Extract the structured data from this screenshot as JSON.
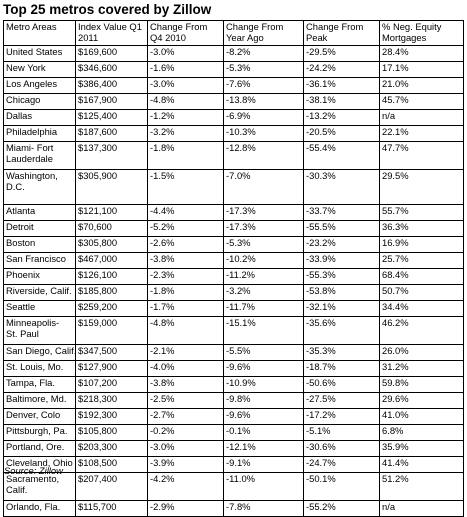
{
  "title": "Top 25 metros covered by Zillow",
  "columns": [
    "Metro Areas",
    "Index Value Q1 2011",
    "Change From Q4 2010",
    "Change From Year Ago",
    "Change From Peak",
    "% Neg. Equity Mortgages"
  ],
  "rows": [
    {
      "metro": "United States",
      "index": "$169,600",
      "q4": "-3.0%",
      "year": "-8.2%",
      "peak": "-29.5%",
      "neg": "28.4%"
    },
    {
      "metro": "New York",
      "index": "$346,600",
      "q4": "-1.6%",
      "year": "-5.3%",
      "peak": "-24.2%",
      "neg": "17.1%"
    },
    {
      "metro": "Los Angeles",
      "index": "$386,400",
      "q4": "-3.0%",
      "year": "-7.6%",
      "peak": "-36.1%",
      "neg": "21.0%"
    },
    {
      "metro": "Chicago",
      "index": "$167,900",
      "q4": "-4.8%",
      "year": "-13.8%",
      "peak": "-38.1%",
      "neg": "45.7%"
    },
    {
      "metro": "Dallas",
      "index": "$125,400",
      "q4": "-1.2%",
      "year": "-6.9%",
      "peak": "-13.2%",
      "neg": "n/a"
    },
    {
      "metro": "Philadelphia",
      "index": "$187,600",
      "q4": "-3.2%",
      "year": "-10.3%",
      "peak": "-20.5%",
      "neg": "22.1%"
    },
    {
      "metro": "Miami- Fort Lauderdale",
      "index": "$137,300",
      "q4": "-1.8%",
      "year": "-12.8%",
      "peak": "-55.4%",
      "neg": "47.7%"
    },
    {
      "metro": "Washington, D.C.",
      "index": "$305,900",
      "q4": "-1.5%",
      "year": "-7.0%",
      "peak": "-30.3%",
      "neg": "29.5%"
    },
    {
      "metro": "Atlanta",
      "index": "$121,100",
      "q4": "-4.4%",
      "year": "-17.3%",
      "peak": "-33.7%",
      "neg": "55.7%"
    },
    {
      "metro": "Detroit",
      "index": "$70,600",
      "q4": "-5.2%",
      "year": "-17.3%",
      "peak": "-55.5%",
      "neg": "36.3%"
    },
    {
      "metro": "Boston",
      "index": "$305,800",
      "q4": "-2.6%",
      "year": "-5.3%",
      "peak": "-23.2%",
      "neg": "16.9%"
    },
    {
      "metro": "San Francisco",
      "index": "$467,000",
      "q4": "-3.8%",
      "year": "-10.2%",
      "peak": "-33.9%",
      "neg": "25.7%"
    },
    {
      "metro": "Phoenix",
      "index": "$126,100",
      "q4": "-2.3%",
      "year": "-11.2%",
      "peak": "-55.3%",
      "neg": "68.4%"
    },
    {
      "metro": "Riverside, Calif.",
      "index": "$185,800",
      "q4": "-1.8%",
      "year": "-3.2%",
      "peak": "-53.8%",
      "neg": "50.7%"
    },
    {
      "metro": "Seattle",
      "index": "$259,200",
      "q4": "-1.7%",
      "year": "-11.7%",
      "peak": "-32.1%",
      "neg": "34.4%"
    },
    {
      "metro": "Minneapolis- St. Paul",
      "index": "$159,000",
      "q4": "-4.8%",
      "year": "-15.1%",
      "peak": "-35.6%",
      "neg": "46.2%"
    },
    {
      "metro": "San Diego, Calif.",
      "index": "$347,500",
      "q4": "-2.1%",
      "year": "-5.5%",
      "peak": "-35.3%",
      "neg": "26.0%"
    },
    {
      "metro": "St. Louis, Mo.",
      "index": "$127,900",
      "q4": "-4.0%",
      "year": "-9.6%",
      "peak": "-18.7%",
      "neg": "31.2%"
    },
    {
      "metro": "Tampa, Fla.",
      "index": "$107,200",
      "q4": "-3.8%",
      "year": "-10.9%",
      "peak": "-50.6%",
      "neg": "59.8%"
    },
    {
      "metro": "Baltimore, Md.",
      "index": "$218,300",
      "q4": "-2.5%",
      "year": "-9.8%",
      "peak": "-27.5%",
      "neg": "29.6%"
    },
    {
      "metro": "Denver, Colo",
      "index": "$192,300",
      "q4": "-2.7%",
      "year": "-9.6%",
      "peak": "-17.2%",
      "neg": "41.0%"
    },
    {
      "metro": "Pittsburgh, Pa.",
      "index": "$105,800",
      "q4": "-0.2%",
      "year": "-0.1%",
      "peak": "-5.1%",
      "neg": "6.8%"
    },
    {
      "metro": "Portland, Ore.",
      "index": "$203,300",
      "q4": "-3.0%",
      "year": "-12.1%",
      "peak": "-30.6%",
      "neg": "35.9%"
    },
    {
      "metro": "Cleveland, Ohio",
      "index": "$108,500",
      "q4": "-3.9%",
      "year": "-9.1%",
      "peak": "-24.7%",
      "neg": "41.4%"
    },
    {
      "metro": "Sacramento, Calif.",
      "index": "$207,400",
      "q4": "-4.2%",
      "year": "-11.0%",
      "peak": "-50.1%",
      "neg": "51.2%"
    },
    {
      "metro": "Orlando, Fla.",
      "index": "$115,700",
      "q4": "-2.9%",
      "year": "-7.8%",
      "peak": "-55.2%",
      "neg": "n/a"
    }
  ],
  "source": "Source: Zillow"
}
